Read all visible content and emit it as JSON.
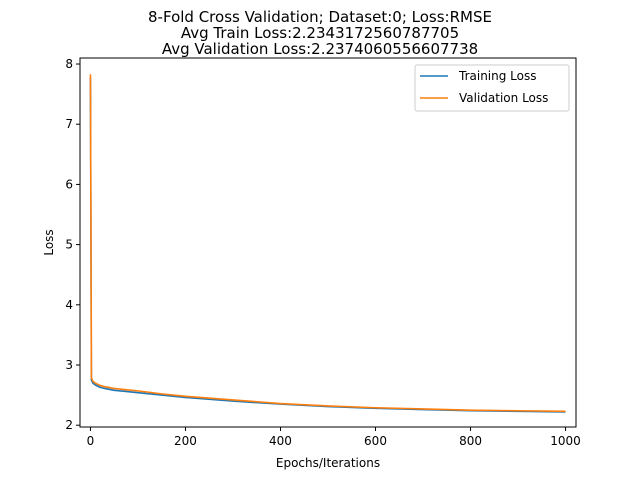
{
  "chart_data": {
    "type": "line",
    "title": [
      "8-Fold Cross Validation; Dataset:0; Loss:RMSE",
      "Avg Train Loss:2.2343172560787705",
      "Avg Validation Loss:2.2374060556607738"
    ],
    "xlabel": "Epochs/Iterations",
    "ylabel": "Loss",
    "xlim": [
      -22,
      1022
    ],
    "ylim": [
      1.97,
      8.1
    ],
    "xticks": [
      0,
      200,
      400,
      600,
      800,
      1000
    ],
    "yticks": [
      2,
      3,
      4,
      5,
      6,
      7,
      8
    ],
    "grid": false,
    "legend": "upper right",
    "series": [
      {
        "name": "Training Loss",
        "color": "#1f77b4",
        "x": [
          0,
          2,
          5,
          10,
          20,
          30,
          50,
          75,
          100,
          150,
          200,
          300,
          400,
          500,
          600,
          700,
          800,
          900,
          1000
        ],
        "y": [
          7.78,
          2.75,
          2.7,
          2.67,
          2.63,
          2.61,
          2.58,
          2.56,
          2.54,
          2.5,
          2.46,
          2.4,
          2.35,
          2.31,
          2.28,
          2.26,
          2.24,
          2.23,
          2.22
        ]
      },
      {
        "name": "Validation Loss",
        "color": "#ff7f0e",
        "x": [
          0,
          2,
          5,
          10,
          20,
          30,
          50,
          75,
          100,
          150,
          200,
          300,
          400,
          500,
          600,
          700,
          800,
          900,
          1000
        ],
        "y": [
          7.83,
          2.79,
          2.73,
          2.7,
          2.66,
          2.64,
          2.61,
          2.59,
          2.57,
          2.52,
          2.48,
          2.42,
          2.36,
          2.32,
          2.29,
          2.27,
          2.25,
          2.24,
          2.23
        ]
      }
    ]
  }
}
